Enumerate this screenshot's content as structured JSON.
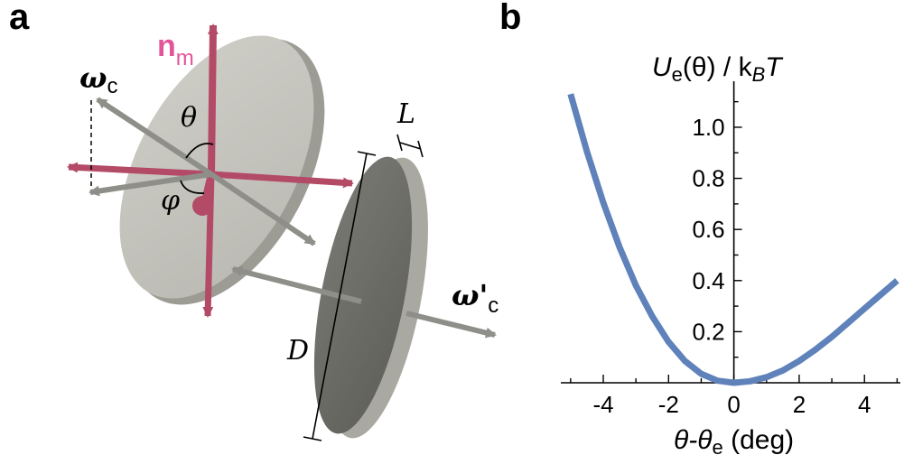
{
  "panel_a": {
    "label": "a",
    "n_m": "n",
    "n_m_sub": "m",
    "omega_c": "ω",
    "omega_c_sub": "c",
    "omega_c_prime": "ω'",
    "omega_c_prime_sub": "c",
    "theta": "θ",
    "phi": "φ",
    "L": "L",
    "D": "D",
    "colors": {
      "disk_face": "#c8c7c0",
      "disk_edge": "#9c9b94",
      "disk2_face": "#6c6c67",
      "arrow_gray": "#8f8f8a",
      "arrow_red": "#b34a66",
      "n_label": "#e3559a"
    }
  },
  "panel_b": {
    "label": "b",
    "ylabel_U": "U",
    "ylabel_U_sub": "e",
    "ylabel_rest": "(θ) / k",
    "ylabel_kB_sub": "B",
    "ylabel_T": "T",
    "xlabel_theta": "θ-θ",
    "xlabel_sub": "e",
    "xlabel_unit": " (deg)"
  },
  "chart_data": {
    "type": "line",
    "xlabel": "θ-θe (deg)",
    "ylabel": "Ue(θ) / kBT",
    "xlim": [
      -5.3,
      5.1
    ],
    "ylim": [
      0,
      1.18
    ],
    "xticks": [
      -4,
      -2,
      0,
      2,
      4
    ],
    "xtick_labels": [
      "-4",
      "-2",
      "0",
      "2",
      "4"
    ],
    "yticks": [
      0.2,
      0.4,
      0.6,
      0.8,
      1.0
    ],
    "ytick_labels": [
      "0.2",
      "0.4",
      "0.6",
      "0.8",
      "1.0"
    ],
    "grid": false,
    "series": [
      {
        "color": "#5f82bb",
        "x": [
          -5,
          -4.5,
          -4,
          -3.5,
          -3,
          -2.5,
          -2,
          -1.5,
          -1,
          -0.5,
          0,
          0.5,
          1,
          1.5,
          2,
          2.5,
          3,
          3.5,
          4,
          4.5,
          5
        ],
        "y": [
          1.13,
          0.905,
          0.705,
          0.53,
          0.38,
          0.26,
          0.16,
          0.085,
          0.035,
          0.008,
          0.0,
          0.006,
          0.022,
          0.048,
          0.085,
          0.13,
          0.18,
          0.235,
          0.29,
          0.345,
          0.4
        ]
      }
    ]
  }
}
